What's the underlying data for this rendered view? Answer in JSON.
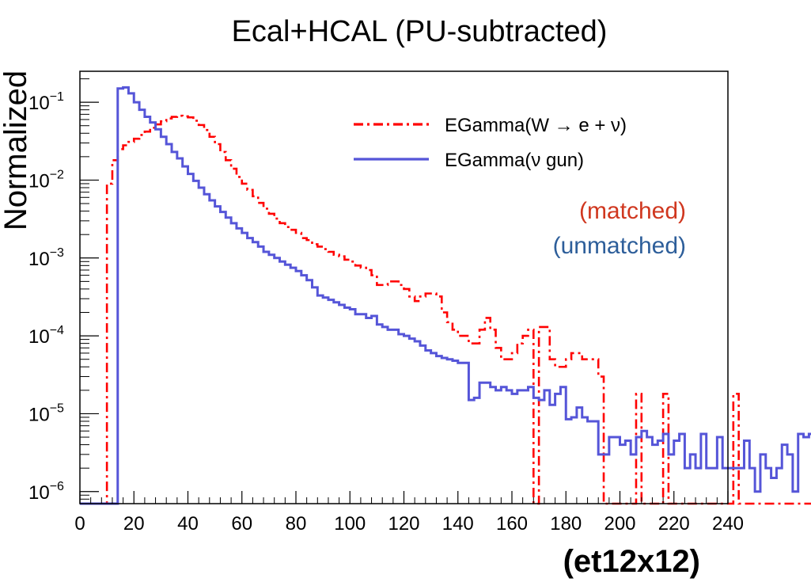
{
  "chart_data": {
    "type": "line",
    "title": "Ecal+HCAL (PU-subtracted)",
    "xlabel": "(et12x12)",
    "ylabel": "Normalized",
    "xlim": [
      0,
      240
    ],
    "ylim": [
      7e-07,
      0.25
    ],
    "yscale": "log",
    "grid": false,
    "legend_position": "top-right",
    "x_ticks": [
      "0",
      "20",
      "40",
      "60",
      "80",
      "100",
      "120",
      "140",
      "160",
      "180",
      "200",
      "220",
      "240"
    ],
    "y_ticks": [
      {
        "value": 1e-06,
        "mantissa": "10",
        "exp": "−6"
      },
      {
        "value": 1e-05,
        "mantissa": "10",
        "exp": "−5"
      },
      {
        "value": 0.0001,
        "mantissa": "10",
        "exp": "−4"
      },
      {
        "value": 0.001,
        "mantissa": "10",
        "exp": "−3"
      },
      {
        "value": 0.01,
        "mantissa": "10",
        "exp": "−2"
      },
      {
        "value": 0.1,
        "mantissa": "10",
        "exp": "−1"
      }
    ],
    "bin_width": 2,
    "annotations": [
      {
        "text": "(matched)",
        "color": "#d0371f"
      },
      {
        "text": "(unmatched)",
        "color": "#2d5e9a"
      }
    ],
    "series": [
      {
        "name": "EGamma(W → e + ν)",
        "color": "#ff0000",
        "style": "dash-dot",
        "values": [
          0,
          0,
          0,
          0,
          0,
          0.009,
          0.018,
          0.025,
          0.028,
          0.031,
          0.034,
          0.038,
          0.042,
          0.047,
          0.052,
          0.057,
          0.062,
          0.065,
          0.067,
          0.066,
          0.064,
          0.058,
          0.051,
          0.044,
          0.036,
          0.029,
          0.023,
          0.018,
          0.014,
          0.011,
          0.009,
          0.0075,
          0.0062,
          0.0051,
          0.0043,
          0.0037,
          0.0032,
          0.0028,
          0.0025,
          0.0023,
          0.0021,
          0.0018,
          0.0017,
          0.0015,
          0.0014,
          0.0013,
          0.0012,
          0.0011,
          0.00105,
          0.00095,
          0.0009,
          0.0008,
          0.00075,
          0.0007,
          0.0006,
          0.00045,
          0.00045,
          0.0005,
          0.0005,
          0.00045,
          0.0004,
          0.00032,
          0.00028,
          0.00032,
          0.00035,
          0.00035,
          0.00032,
          0.0002,
          0.00015,
          0.00012,
          0.0001,
          0.0001,
          8e-05,
          8e-05,
          0.00012,
          0.00017,
          0.00012,
          7e-05,
          5e-05,
          5e-05,
          6e-05,
          8e-05,
          0.0001,
          0.00012,
          0.0,
          0.00013,
          0.00013,
          5e-05,
          4e-05,
          4e-05,
          5e-05,
          6e-05,
          6e-05,
          5e-05,
          5e-05,
          5e-05,
          3e-05,
          0,
          0,
          0,
          0,
          0,
          0,
          1.8e-05,
          0,
          0,
          0,
          0,
          1.8e-05,
          0,
          0,
          0,
          0,
          0,
          0,
          0,
          0,
          0,
          0,
          0,
          0,
          1.8e-05,
          0,
          0,
          0,
          0,
          0,
          0,
          0,
          0,
          0,
          0,
          0,
          0,
          0,
          0
        ]
      },
      {
        "name": "EGamma(ν gun)",
        "color": "#5555d8",
        "style": "solid",
        "values": [
          0,
          0,
          0,
          0,
          0,
          0,
          0,
          0.15,
          0.155,
          0.13,
          0.1,
          0.08,
          0.065,
          0.055,
          0.045,
          0.036,
          0.029,
          0.023,
          0.019,
          0.015,
          0.012,
          0.0098,
          0.008,
          0.0066,
          0.0055,
          0.0046,
          0.0039,
          0.0033,
          0.0028,
          0.0024,
          0.0021,
          0.0018,
          0.0016,
          0.0014,
          0.0012,
          0.0011,
          0.001,
          0.0009,
          0.00082,
          0.00075,
          0.00068,
          0.0006,
          0.00052,
          0.00042,
          0.00033,
          0.00031,
          0.00029,
          0.00027,
          0.00025,
          0.00023,
          0.00022,
          0.00019,
          0.00019,
          0.00017,
          0.00018,
          0.00014,
          0.00013,
          0.00012,
          0.00012,
          0.000105,
          0.0001,
          9.2e-05,
          8.5e-05,
          7.5e-05,
          6.5e-05,
          6e-05,
          5.5e-05,
          5.2e-05,
          5e-05,
          4.8e-05,
          4.5e-05,
          4.5e-05,
          1.5e-05,
          1.6e-05,
          2.5e-05,
          2.5e-05,
          2.2e-05,
          2e-05,
          2.2e-05,
          2e-05,
          1.8e-05,
          2e-05,
          2e-05,
          2.2e-05,
          1.6e-05,
          1.5e-05,
          2e-05,
          1.3e-05,
          1.8e-05,
          2.2e-05,
          8.5e-06,
          9e-06,
          1.2e-05,
          9e-06,
          8e-06,
          8e-06,
          3e-06,
          3e-06,
          5e-06,
          5e-06,
          4e-06,
          4.5e-06,
          3e-06,
          5e-06,
          6e-06,
          5e-06,
          4e-06,
          4.5e-06,
          5.5e-06,
          3e-06,
          4.5e-06,
          5.5e-06,
          2e-06,
          3e-06,
          2e-06,
          5.5e-06,
          2e-06,
          2e-06,
          5e-06,
          2e-06,
          2e-06,
          2e-06,
          2e-06,
          4.5e-06,
          2e-06,
          1e-06,
          3e-06,
          2e-06,
          1.5e-06,
          2e-06,
          4e-06,
          3e-06,
          1e-06,
          5.5e-06,
          5e-06,
          5.5e-06
        ]
      }
    ]
  }
}
